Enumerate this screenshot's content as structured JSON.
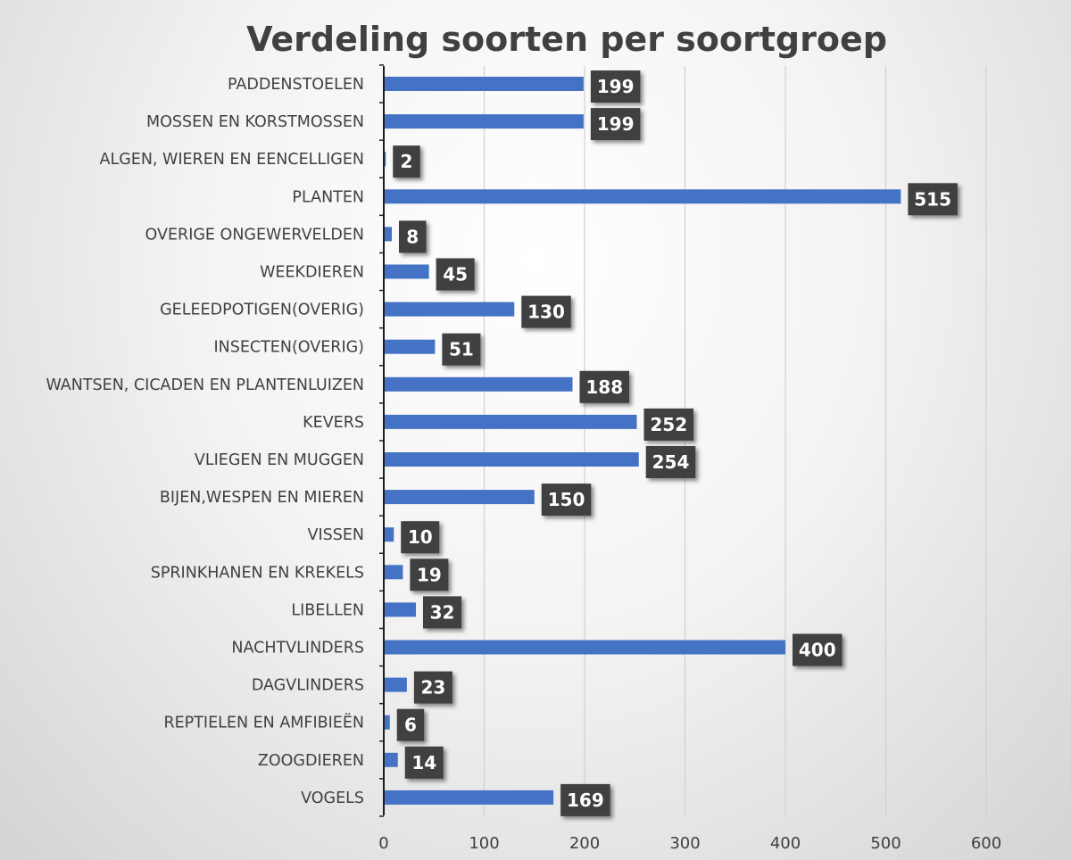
{
  "chart_data": {
    "type": "bar",
    "orientation": "horizontal",
    "title": "Verdeling soorten per soortgroep",
    "categories": [
      "PADDENSTOELEN",
      "MOSSEN EN KORSTMOSSEN",
      "ALGEN, WIEREN EN EENCELLIGEN",
      "PLANTEN",
      "OVERIGE ONGEWERVELDEN",
      "WEEKDIEREN",
      "GELEEDPOTIGEN(OVERIG)",
      "INSECTEN(OVERIG)",
      "WANTSEN, CICADEN EN PLANTENLUIZEN",
      "KEVERS",
      "VLIEGEN EN MUGGEN",
      "BIJEN,WESPEN EN MIEREN",
      "VISSEN",
      "SPRINKHANEN EN KREKELS",
      "LIBELLEN",
      "NACHTVLINDERS",
      "DAGVLINDERS",
      "REPTIELEN EN AMFIBIEËN",
      "ZOOGDIEREN",
      "VOGELS"
    ],
    "values": [
      199,
      199,
      2,
      515,
      8,
      45,
      130,
      51,
      188,
      252,
      254,
      150,
      10,
      19,
      32,
      400,
      23,
      6,
      14,
      169
    ],
    "xlim": [
      0,
      600
    ],
    "xticks": [
      0,
      100,
      200,
      300,
      400,
      500,
      600
    ],
    "grid": true,
    "bar_color": "#4472c4",
    "label_box_color": "#404040",
    "data_labels": true
  }
}
